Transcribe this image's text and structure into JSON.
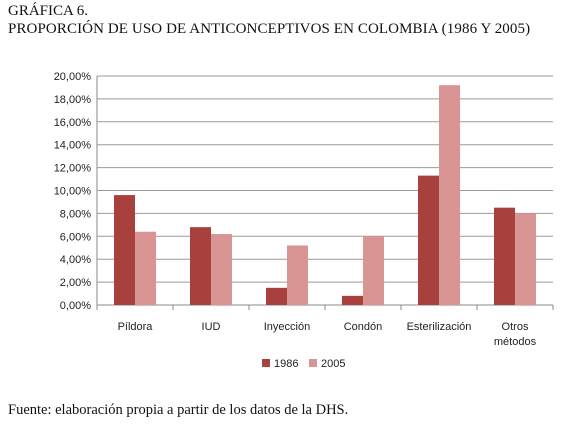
{
  "figure": {
    "label": "GRÁFICA 6.",
    "title": "PROPORCIÓN DE USO DE ANTICONCEPTIVOS EN COLOMBIA (1986 Y 2005)",
    "source": "Fuente: elaboración propia a partir de los datos de la DHS."
  },
  "chart_data": {
    "type": "bar",
    "title": "",
    "xlabel": "",
    "ylabel": "",
    "categories": [
      "Píldora",
      "IUD",
      "Inyección",
      "Condón",
      "Esterilización",
      "Otros métodos"
    ],
    "category_lines": [
      [
        "Píldora"
      ],
      [
        "IUD"
      ],
      [
        "Inyección"
      ],
      [
        "Condón"
      ],
      [
        "Esterilización"
      ],
      [
        "Otros",
        "métodos"
      ]
    ],
    "series": [
      {
        "name": "1986",
        "color": "#a8403e",
        "values": [
          9.6,
          6.8,
          1.5,
          0.8,
          11.3,
          8.5
        ]
      },
      {
        "name": "2005",
        "color": "#d99594",
        "values": [
          6.4,
          6.2,
          5.2,
          6.0,
          19.2,
          8.0
        ]
      }
    ],
    "ylim": [
      0,
      20
    ],
    "yticks": [
      "0,00%",
      "2,00%",
      "4,00%",
      "6,00%",
      "8,00%",
      "10,00%",
      "12,00%",
      "14,00%",
      "16,00%",
      "18,00%",
      "20,00%"
    ],
    "grid": true,
    "legend_position": "bottom"
  }
}
